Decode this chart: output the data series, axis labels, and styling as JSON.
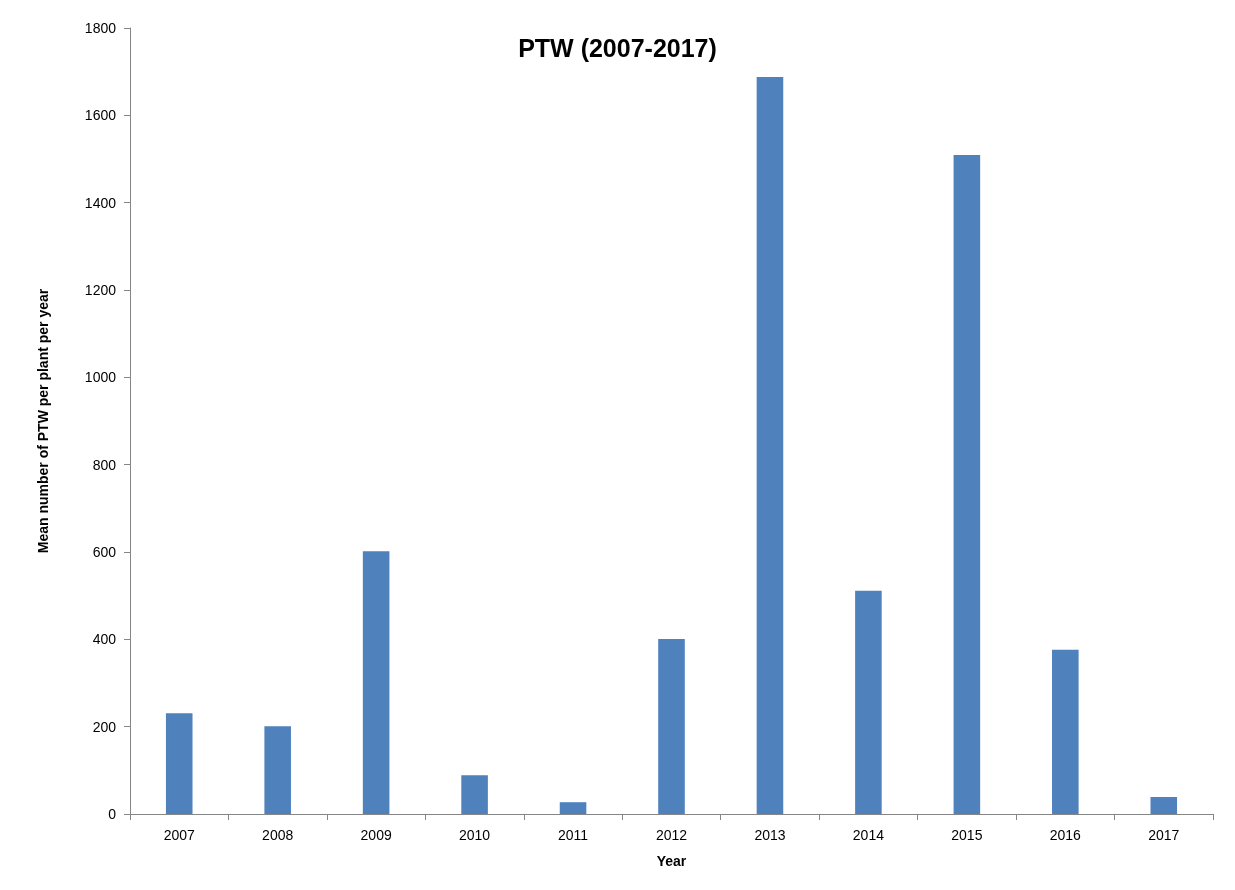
{
  "chart_data": {
    "type": "bar",
    "title": "PTW (2007-2017)",
    "xlabel": "Year",
    "ylabel": "Mean number of PTW per plant per year",
    "categories": [
      "2007",
      "2008",
      "2009",
      "2010",
      "2011",
      "2012",
      "2013",
      "2014",
      "2015",
      "2016",
      "2017"
    ],
    "values": [
      231,
      201,
      602,
      89,
      27,
      401,
      1688,
      511,
      1509,
      376,
      39
    ],
    "color": "#4f81bd",
    "ylim": [
      0,
      1800
    ],
    "yticks": [
      0,
      200,
      400,
      600,
      800,
      1000,
      1200,
      1400,
      1600,
      1800
    ],
    "grid": false
  }
}
